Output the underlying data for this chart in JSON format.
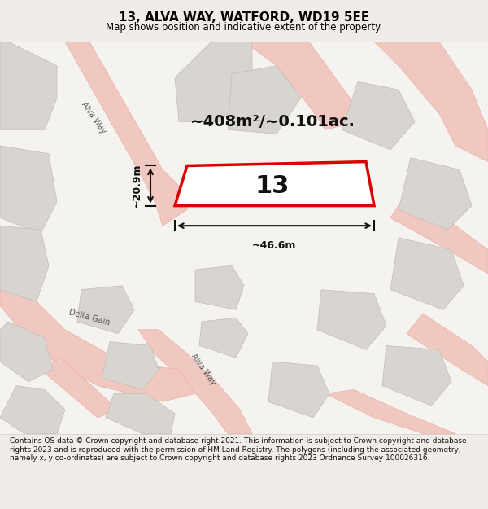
{
  "title": "13, ALVA WAY, WATFORD, WD19 5EE",
  "subtitle": "Map shows position and indicative extent of the property.",
  "area_text": "~408m²/~0.101ac.",
  "width_text": "~46.6m",
  "height_text": "~20.9m",
  "plot_number": "13",
  "footer_text": "Contains OS data © Crown copyright and database right 2021. This information is subject to Crown copyright and database rights 2023 and is reproduced with the permission of HM Land Registry. The polygons (including the associated geometry, namely x, y co-ordinates) are subject to Crown copyright and database rights 2023 Ordnance Survey 100026316.",
  "bg_color": "#f0ede8",
  "map_bg": "#f5f3ef",
  "road_color": "#e8d5d0",
  "road_stroke": "#e8b8b0",
  "building_color": "#d8d5d0",
  "building_stroke": "#c8c5c0",
  "plot_color": "#ffffff",
  "plot_stroke": "#dd0000",
  "footer_bg": "#ffffff",
  "title_color": "#000000",
  "dim_color": "#111111"
}
